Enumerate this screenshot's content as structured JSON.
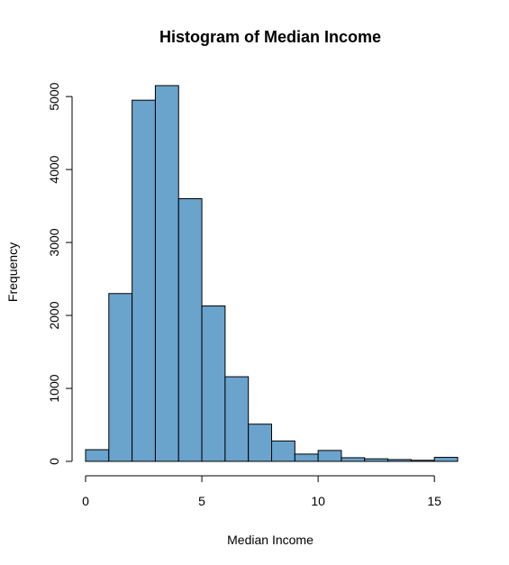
{
  "chart_data": {
    "type": "bar",
    "title": "Histogram of Median Income",
    "xlabel": "Median Income",
    "ylabel": "Frequency",
    "bar_color": "#6aa3cc",
    "bin_edges": [
      0,
      1,
      2,
      3,
      4,
      5,
      6,
      7,
      8,
      9,
      10,
      11,
      12,
      13,
      14,
      15,
      16
    ],
    "values": [
      160,
      2300,
      4950,
      5150,
      3600,
      2130,
      1160,
      510,
      280,
      100,
      150,
      50,
      35,
      25,
      15,
      55
    ],
    "xlim": [
      0,
      16
    ],
    "ylim": [
      0,
      5150
    ],
    "x_ticks": [
      0,
      5,
      10,
      15
    ],
    "x_tick_labels": [
      "0",
      "5",
      "10",
      "15"
    ],
    "y_ticks": [
      0,
      1000,
      2000,
      3000,
      4000,
      5000
    ],
    "y_tick_labels": [
      "0",
      "1000",
      "2000",
      "3000",
      "4000",
      "5000"
    ],
    "grid": false,
    "legend": "none"
  }
}
